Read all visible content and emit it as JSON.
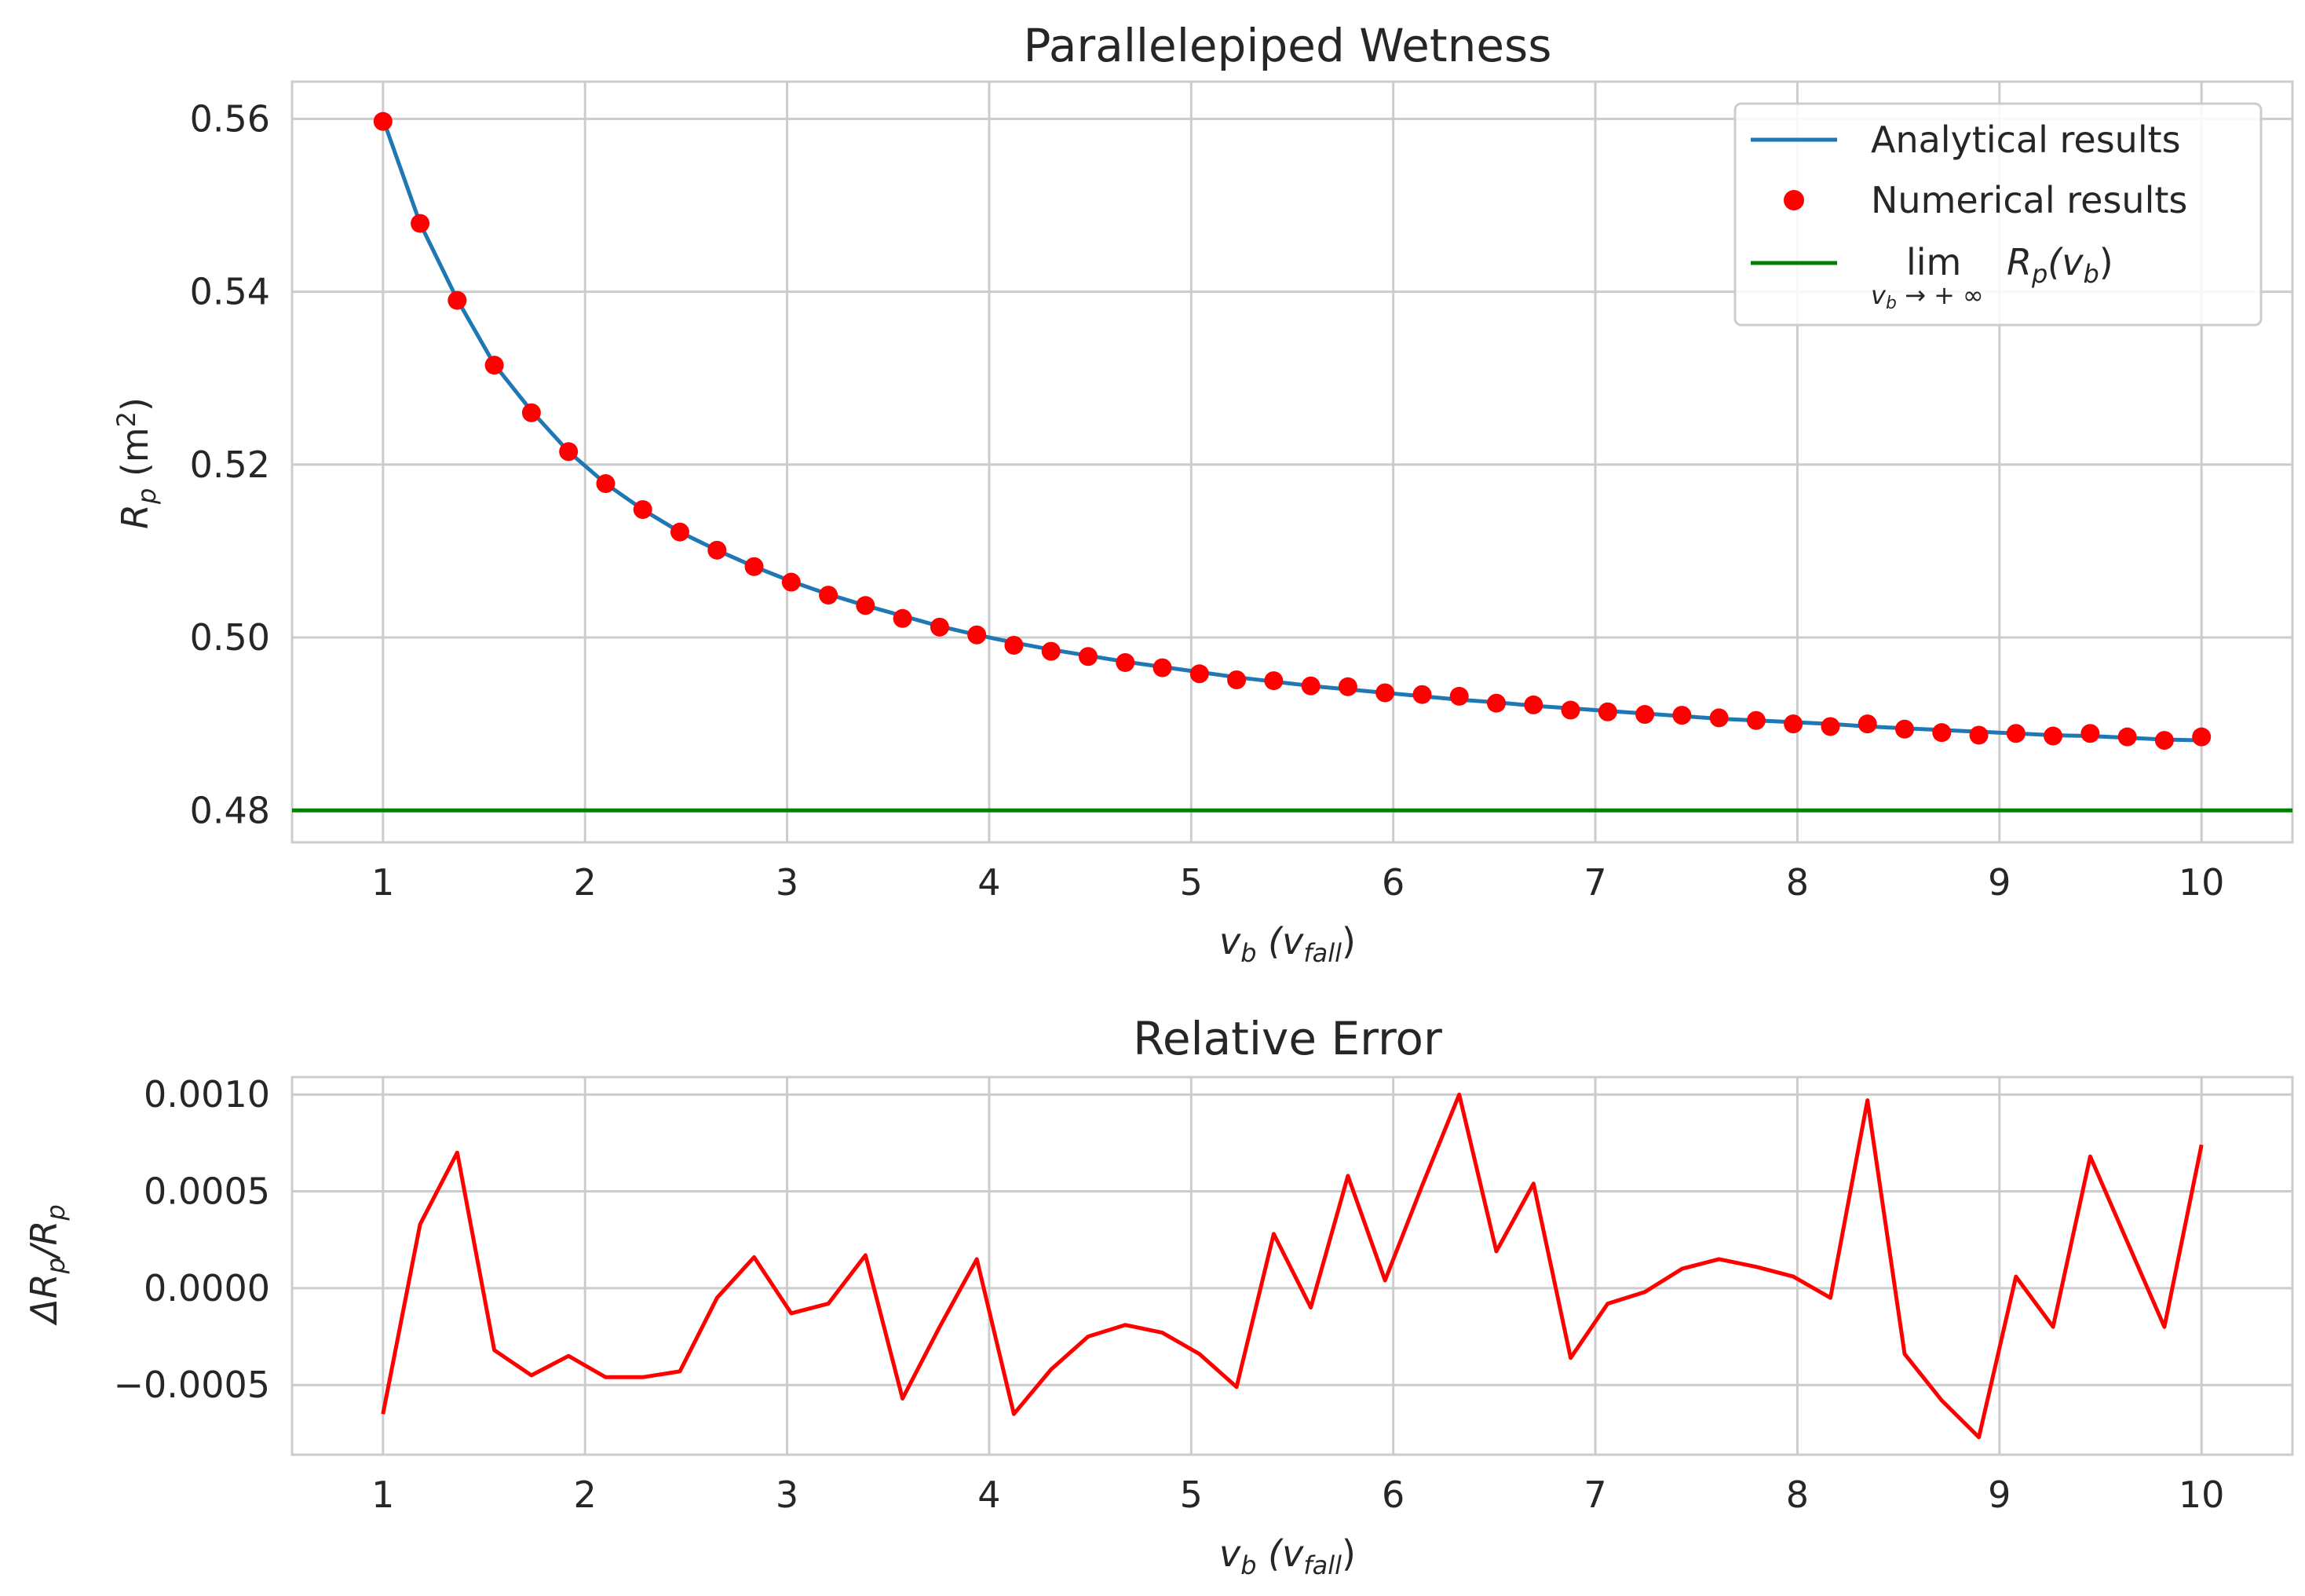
{
  "colors": {
    "analytical": "#1f77b4",
    "numerical": "#ff0000",
    "limit": "#008000",
    "error": "#ff0000",
    "grid": "#cccccc",
    "text": "#262626"
  },
  "chart_data": [
    {
      "type": "line",
      "title": "Parallelepiped Wetness",
      "xlabel": {
        "main": "v",
        "sub": "b",
        "paren_open": " (v",
        "paren_sub": "fall",
        "paren_close": ")"
      },
      "ylabel": {
        "main": "R",
        "sub": "p",
        "rest": " (m",
        "sup": "2",
        "close": ")"
      },
      "xlim": [
        0.55,
        10.45
      ],
      "ylim": [
        0.4763,
        0.5643
      ],
      "xticks": [
        1,
        2,
        3,
        4,
        5,
        6,
        7,
        8,
        9,
        10
      ],
      "xtick_labels": [
        "1",
        "2",
        "3",
        "4",
        "5",
        "6",
        "7",
        "8",
        "9",
        "10"
      ],
      "yticks": [
        0.48,
        0.5,
        0.52,
        0.54,
        0.56
      ],
      "ytick_labels": [
        "0.48",
        "0.50",
        "0.52",
        "0.54",
        "0.56"
      ],
      "grid": true,
      "legend_placement": "top-right",
      "legend": [
        {
          "label": "Analytical results",
          "kind": "line",
          "color": "#1f77b4"
        },
        {
          "label": "Numerical results",
          "kind": "marker",
          "color": "#ff0000"
        },
        {
          "label_lim": "lim",
          "label_lim_sub": "v",
          "label_lim_sub2": "b",
          "label_lim_arrow": " → + ∞",
          "label_expr": "R",
          "label_expr_sub": "p",
          "label_expr_paren": "(v",
          "label_expr_paren_sub": "b",
          "label_expr_close": ")",
          "kind": "line",
          "color": "#008000"
        }
      ],
      "limit_value": 0.48,
      "x": [
        1.0,
        1.1837,
        1.3673,
        1.551,
        1.7347,
        1.9184,
        2.102,
        2.2857,
        2.4694,
        2.6531,
        2.8367,
        3.0204,
        3.2041,
        3.3878,
        3.5714,
        3.7551,
        3.9388,
        4.1224,
        4.3061,
        4.4898,
        4.6735,
        4.8571,
        5.0408,
        5.2245,
        5.4082,
        5.5918,
        5.7755,
        5.9592,
        6.1429,
        6.3265,
        6.5102,
        6.6939,
        6.8776,
        7.0612,
        7.2449,
        7.4286,
        7.6122,
        7.7959,
        7.9796,
        8.1633,
        8.3469,
        8.5306,
        8.7143,
        8.898,
        9.0816,
        9.2653,
        9.449,
        9.6327,
        9.8163,
        10.0
      ],
      "series": [
        {
          "name": "Analytical results",
          "kind": "line",
          "values": [
            0.56,
            0.5479,
            0.5391,
            0.5316,
            0.5262,
            0.5215,
            0.5178,
            0.5148,
            0.5122,
            0.5101,
            0.5082,
            0.5065,
            0.505,
            0.5037,
            0.5025,
            0.5013,
            0.5003,
            0.4994,
            0.4986,
            0.4979,
            0.4972,
            0.4966,
            0.496,
            0.4954,
            0.4949,
            0.4944,
            0.494,
            0.4936,
            0.4932,
            0.4928,
            0.4925,
            0.4921,
            0.4918,
            0.4915,
            0.4912,
            0.4909,
            0.4906,
            0.4904,
            0.4902,
            0.49,
            0.4897,
            0.4895,
            0.4893,
            0.4891,
            0.4889,
            0.4887,
            0.4886,
            0.4884,
            0.4882,
            0.4881
          ]
        },
        {
          "name": "Numerical results",
          "kind": "scatter",
          "values": [
            0.5597,
            0.5479,
            0.539,
            0.5315,
            0.526,
            0.5215,
            0.5178,
            0.5148,
            0.5122,
            0.5101,
            0.5082,
            0.5064,
            0.5049,
            0.5037,
            0.5022,
            0.5012,
            0.5003,
            0.4991,
            0.4984,
            0.4978,
            0.4971,
            0.4965,
            0.4958,
            0.4951,
            0.495,
            0.4944,
            0.4943,
            0.4936,
            0.4934,
            0.4932,
            0.4924,
            0.4922,
            0.4916,
            0.4914,
            0.4911,
            0.491,
            0.4907,
            0.4904,
            0.49,
            0.4897,
            0.49,
            0.4894,
            0.489,
            0.4887,
            0.4889,
            0.4886,
            0.4889,
            0.4885,
            0.4881,
            0.4885
          ]
        }
      ]
    },
    {
      "type": "line",
      "title": "Relative Error",
      "xlabel": {
        "main": "v",
        "sub": "b",
        "paren_open": " (v",
        "paren_sub": "fall",
        "paren_close": ")"
      },
      "ylabel": {
        "delta": "ΔR",
        "sub1": "p",
        "slash": "/R",
        "sub2": "p"
      },
      "xlim": [
        0.55,
        10.45
      ],
      "ylim": [
        -0.00086,
        0.00109
      ],
      "xticks": [
        1,
        2,
        3,
        4,
        5,
        6,
        7,
        8,
        9,
        10
      ],
      "xtick_labels": [
        "1",
        "2",
        "3",
        "4",
        "5",
        "6",
        "7",
        "8",
        "9",
        "10"
      ],
      "yticks": [
        -0.0005,
        0.0,
        0.0005,
        0.001
      ],
      "ytick_labels": [
        "−0.0005",
        "0.0000",
        "0.0005",
        "0.0010"
      ],
      "grid": true,
      "x": [
        1.0,
        1.1837,
        1.3673,
        1.551,
        1.7347,
        1.9184,
        2.102,
        2.2857,
        2.4694,
        2.6531,
        2.8367,
        3.0204,
        3.2041,
        3.3878,
        3.5714,
        3.7551,
        3.9388,
        4.1224,
        4.3061,
        4.4898,
        4.6735,
        4.8571,
        5.0408,
        5.2245,
        5.4082,
        5.5918,
        5.7755,
        5.9592,
        6.1429,
        6.3265,
        6.5102,
        6.6939,
        6.8776,
        7.0612,
        7.2449,
        7.4286,
        7.6122,
        7.7959,
        7.9796,
        8.1633,
        8.3469,
        8.5306,
        8.7143,
        8.898,
        9.0816,
        9.2653,
        9.449,
        9.6327,
        9.8163,
        10.0
      ],
      "series": [
        {
          "kind": "line",
          "values": [
            -0.00065,
            0.00033,
            0.0007,
            -0.00032,
            -0.00045,
            -0.00035,
            -0.00046,
            -0.00046,
            -0.00043,
            -5e-05,
            0.00016,
            -0.00013,
            -8e-05,
            0.00017,
            -0.00057,
            -0.0002,
            0.00015,
            -0.00065,
            -0.00042,
            -0.00025,
            -0.00019,
            -0.00023,
            -0.00034,
            -0.00051,
            0.00028,
            -0.0001,
            0.00058,
            4e-05,
            0.00053,
            0.001,
            0.00019,
            0.00054,
            -0.00036,
            -8e-05,
            -2e-05,
            0.0001,
            0.00015,
            0.00011,
            6e-05,
            -5e-05,
            0.00097,
            -0.00034,
            -0.00058,
            -0.00077,
            6e-05,
            -0.0002,
            0.00068,
            0.00024,
            -0.0002,
            0.00074
          ]
        }
      ]
    }
  ]
}
